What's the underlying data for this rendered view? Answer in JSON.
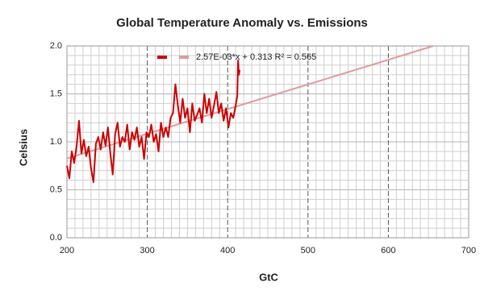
{
  "chart_data": {
    "type": "line",
    "title": "Global Temperature Anomaly vs. Emissions",
    "x_label": "GtC",
    "y_label": "Celsius",
    "xlim": [
      200,
      700
    ],
    "ylim": [
      0,
      2
    ],
    "xticks": [
      200,
      300,
      400,
      500,
      600,
      700
    ],
    "yticks": [
      {
        "value": 0,
        "label": "0.0"
      },
      0.5,
      {
        "value": 1,
        "label": "1.0"
      },
      1.5,
      {
        "value": 2,
        "label": "2.0"
      }
    ],
    "xminorticks": [
      210,
      220,
      230,
      240,
      250,
      260,
      270,
      280,
      290,
      310,
      320,
      330,
      340,
      350,
      360,
      370,
      380,
      390,
      410,
      420,
      430,
      440,
      450,
      460,
      470,
      480,
      490,
      510,
      520,
      530,
      540,
      550,
      560,
      570,
      580,
      590,
      610,
      620,
      630,
      640,
      650,
      660,
      670,
      680,
      690
    ],
    "yminorticks": [
      0.1,
      0.2,
      0.3,
      0.4,
      0.6,
      0.7,
      0.8,
      0.9,
      1.1,
      1.2,
      1.3,
      1.4,
      1.6,
      1.7,
      1.8,
      1.9
    ],
    "grid": true,
    "legend": "top",
    "series": [
      {
        "color": "#cc0000",
        "x": [
          200,
          203,
          206,
          209,
          212,
          215,
          218,
          221,
          224,
          227,
          230,
          233,
          236,
          239,
          242,
          245,
          248,
          251,
          254,
          257,
          260,
          263,
          266,
          269,
          272,
          275,
          278,
          281,
          284,
          287,
          290,
          293,
          296,
          299,
          302,
          305,
          308,
          311,
          314,
          317,
          320,
          323,
          326,
          329,
          332,
          335,
          338,
          341,
          344,
          347,
          350,
          353,
          356,
          359,
          362,
          365,
          368,
          371,
          374,
          377,
          380,
          383,
          386,
          389,
          392,
          395,
          398,
          401,
          404,
          407,
          410,
          412,
          413,
          414,
          415
        ],
        "values": [
          0.75,
          0.62,
          0.9,
          0.78,
          0.95,
          1.22,
          0.88,
          1.02,
          0.85,
          0.95,
          0.72,
          0.58,
          0.98,
          1.05,
          0.92,
          1.1,
          0.96,
          1.15,
          0.88,
          0.66,
          1.08,
          1.2,
          0.95,
          1.05,
          1.0,
          1.18,
          0.92,
          1.1,
          1.02,
          1.15,
          0.95,
          1.05,
          0.82,
          1.1,
          1.05,
          1.18,
          1.0,
          1.08,
          0.9,
          1.2,
          1.05,
          1.15,
          1.05,
          1.25,
          1.3,
          1.6,
          1.38,
          1.2,
          1.45,
          1.25,
          1.35,
          1.1,
          1.4,
          1.22,
          1.28,
          1.35,
          1.2,
          1.5,
          1.3,
          1.45,
          1.25,
          1.38,
          1.52,
          1.3,
          1.4,
          1.22,
          1.35,
          1.15,
          1.3,
          1.25,
          1.38,
          1.48,
          1.85,
          1.7,
          1.75
        ]
      },
      {
        "name": "2.57E-03*x + 0.313 R² = 0.565",
        "color": "#e09a9a",
        "x": [
          200,
          656
        ],
        "values": [
          0.827,
          2.0
        ]
      }
    ]
  }
}
